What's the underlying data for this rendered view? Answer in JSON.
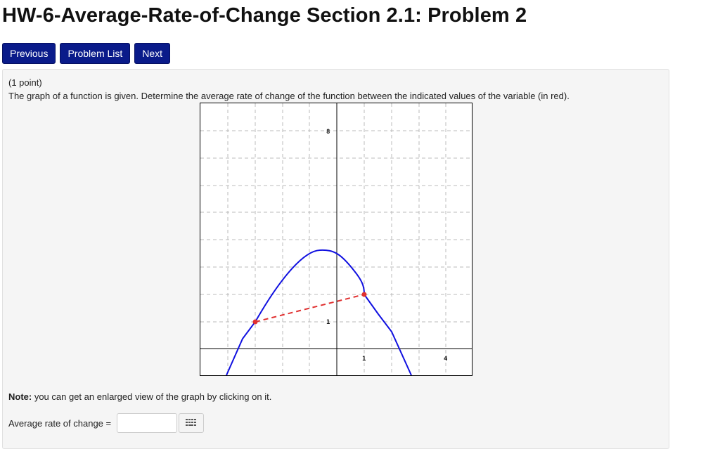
{
  "header": {
    "title": "HW-6-Average-Rate-of-Change Section 2.1: Problem 2"
  },
  "nav": {
    "previous": "Previous",
    "problem_list": "Problem List",
    "next": "Next"
  },
  "problem": {
    "points": "(1 point)",
    "prompt": "The graph of a function is given. Determine the average rate of change of the function between the indicated values of the variable (in red).",
    "note_bold": "Note:",
    "note_text": " you can get an enlarged view of the graph by clicking on it.",
    "answer_label": "Average rate of change =",
    "answer_value": "",
    "answer_placeholder": "",
    "equation_editor_icon": "keypad-icon"
  },
  "graph": {
    "tick_labels": {
      "y_top": "8",
      "y_one": "1",
      "x_one": "1",
      "x_right": "4"
    },
    "colors": {
      "curve": "#1010e0",
      "secant": "#e03030",
      "grid": "#bbbbbb"
    }
  }
}
